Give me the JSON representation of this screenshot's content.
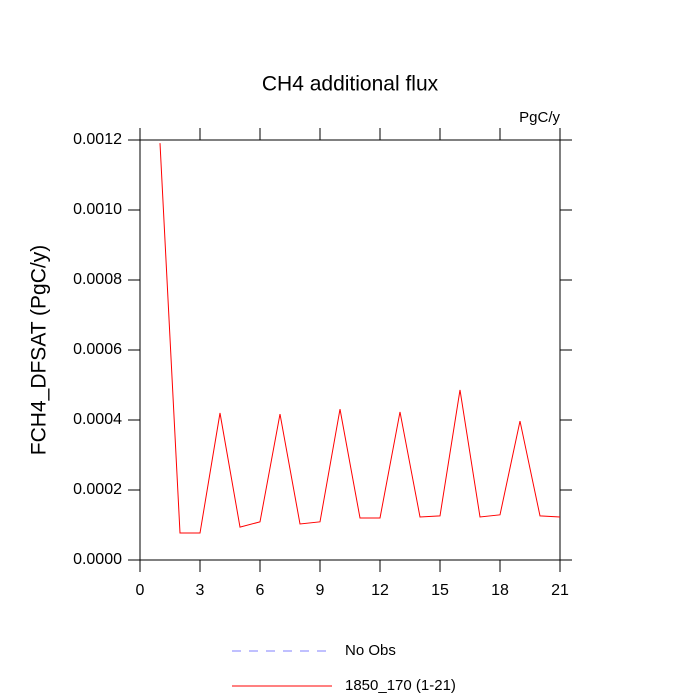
{
  "chart_data": {
    "type": "line",
    "title": "CH4 additional flux",
    "annotation": "PgC/y",
    "y_label": "FCH4_DFSAT  (PgC/y)",
    "x": [
      1,
      2,
      3,
      4,
      5,
      6,
      7,
      8,
      9,
      10,
      11,
      12,
      13,
      14,
      15,
      16,
      17,
      18,
      19,
      20,
      21
    ],
    "series": [
      {
        "name": "No Obs",
        "color": "#8080ff",
        "dash": "dashed",
        "values": [
          null,
          null,
          null,
          null,
          null,
          null,
          null,
          null,
          null,
          null,
          null,
          null,
          null,
          null,
          null,
          null,
          null,
          null,
          null,
          null,
          null
        ]
      },
      {
        "name": "1850_170 (1-21)",
        "color": "#ff0000",
        "dash": "solid",
        "values": [
          0.001191,
          7.7e-05,
          7.7e-05,
          0.00042,
          9.4e-05,
          0.000109,
          0.000417,
          0.000103,
          0.000109,
          0.000431,
          0.00012,
          0.00012,
          0.000423,
          0.000123,
          0.000126,
          0.000486,
          0.000123,
          0.000129,
          0.000397,
          0.000126,
          0.000123
        ]
      }
    ],
    "xlim": [
      0,
      21
    ],
    "xticks": [
      0,
      3,
      6,
      9,
      12,
      15,
      18,
      21
    ],
    "ylim": [
      0,
      0.0012
    ],
    "yticks": [
      {
        "value": 0,
        "label": "0.0000"
      },
      {
        "value": 0.0002,
        "label": "0.0002"
      },
      {
        "value": 0.0004,
        "label": "0.0004"
      },
      {
        "value": 0.0006,
        "label": "0.0006"
      },
      {
        "value": 0.0008,
        "label": "0.0008"
      },
      {
        "value": 0.001,
        "label": "0.0010"
      },
      {
        "value": 0.0012,
        "label": "0.0012"
      }
    ]
  }
}
